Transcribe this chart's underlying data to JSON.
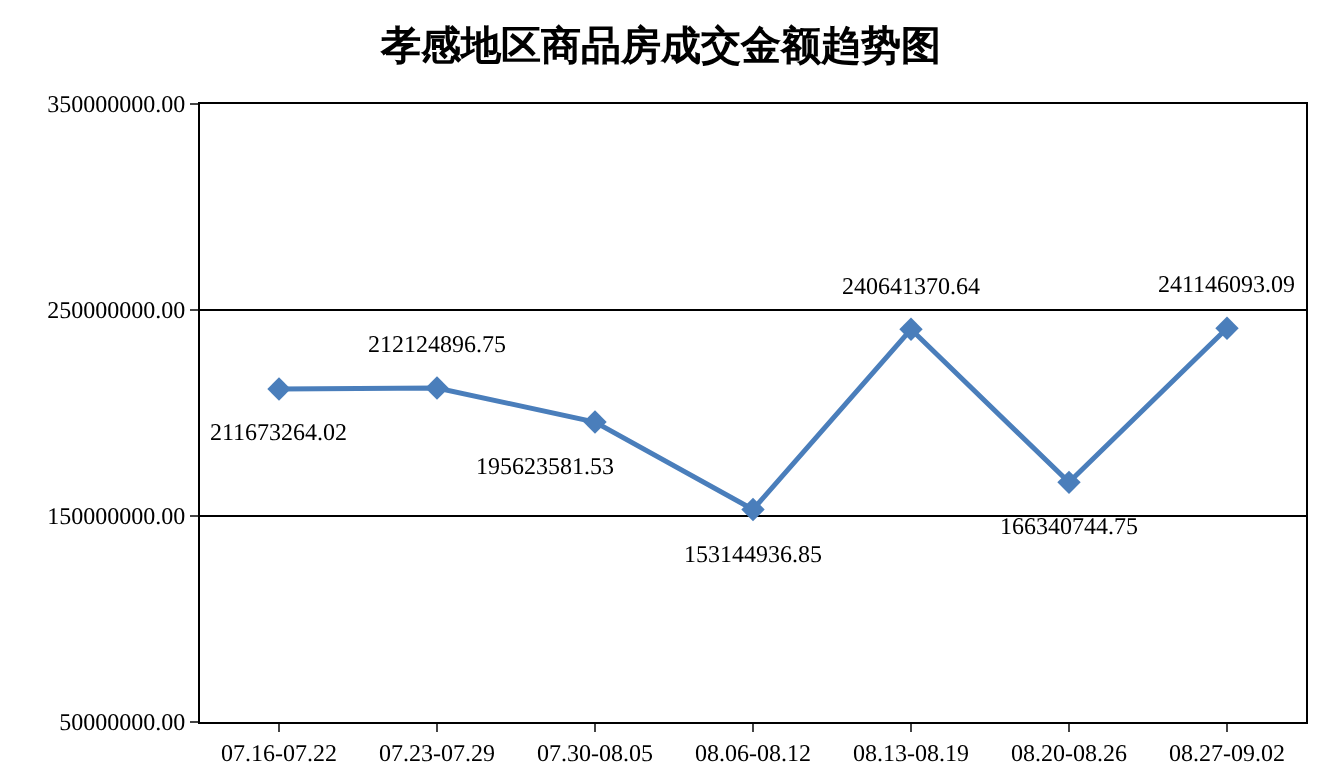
{
  "chart_data": {
    "type": "line",
    "title": "孝感地区商品房成交金额趋势图",
    "categories": [
      "07.16-07.22",
      "07.23-07.29",
      "07.30-08.05",
      "08.06-08.12",
      "08.13-08.19",
      "08.20-08.26",
      "08.27-09.02"
    ],
    "series": [
      {
        "color": "#4a7ebb",
        "values": [
          211673264.02,
          212124896.75,
          195623581.53,
          153144936.85,
          240641370.64,
          166340744.75,
          241146093.09
        ],
        "value_labels": [
          "211673264.02",
          "212124896.75",
          "195623581.53",
          "153144936.85",
          "240641370.64",
          "166340744.75",
          "241146093.09"
        ]
      }
    ],
    "ylim": [
      50000000,
      350000000
    ],
    "yticks": [
      {
        "value": 50000000,
        "label": "50000000.00"
      },
      {
        "value": 150000000,
        "label": "150000000.00"
      },
      {
        "value": 250000000,
        "label": "250000000.00"
      },
      {
        "value": 350000000,
        "label": "350000000.00"
      }
    ],
    "grid": "y",
    "marker": "diamond",
    "line_style": "solid"
  }
}
